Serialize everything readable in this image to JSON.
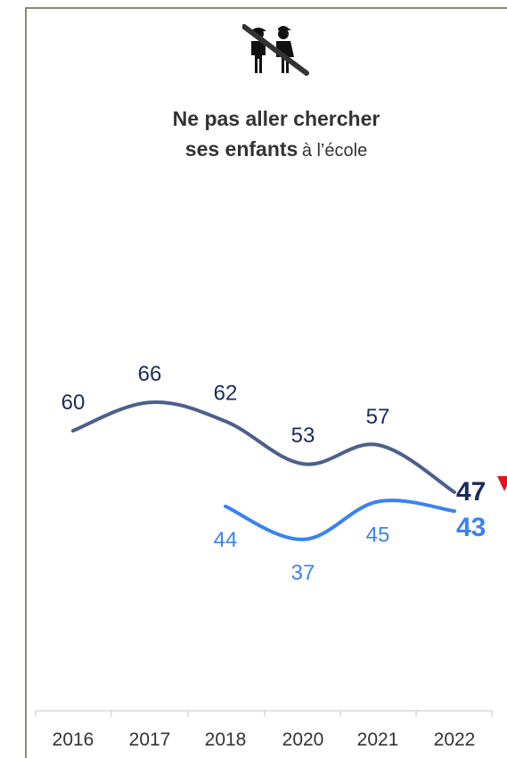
{
  "title": {
    "line1": "Ne pas aller chercher",
    "line2_bold": "ses enfants",
    "line2_rest": "à l’école"
  },
  "icon": "children-crossed-out-icon",
  "colors": {
    "series1": "#4d5f8a",
    "series1_label": "#1b2a5e",
    "series2": "#3b82f0",
    "series2_label": "#3b82f0",
    "axis": "#d9d9d9",
    "down_marker": "#e0141e"
  },
  "chart_data": {
    "type": "line",
    "categories": [
      "2016",
      "2017",
      "2018",
      "2020",
      "2021",
      "2022"
    ],
    "series": [
      {
        "values": [
          60,
          66,
          62,
          53,
          57,
          47
        ]
      },
      {
        "values": [
          null,
          null,
          44,
          37,
          45,
          43
        ]
      }
    ],
    "annotations": [
      {
        "category": "2022",
        "note": "down-arrow",
        "color": "#e0141e"
      }
    ]
  }
}
